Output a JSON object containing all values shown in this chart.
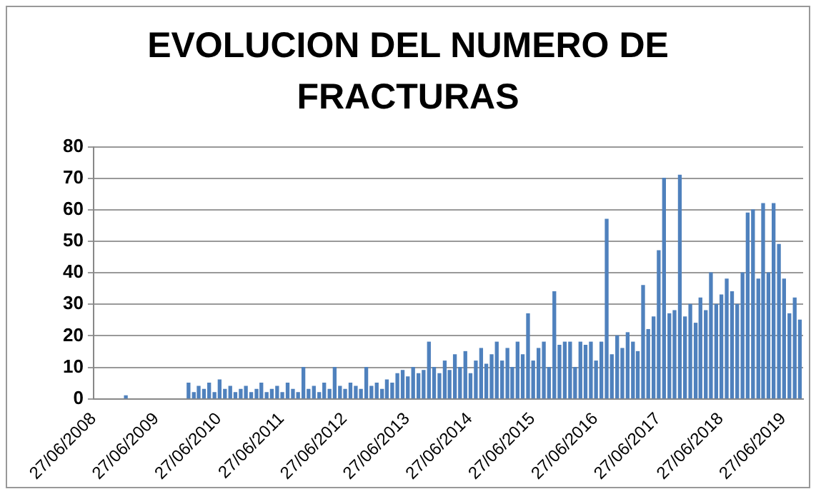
{
  "chart_data": {
    "type": "bar",
    "title": "EVOLUCION DEL NUMERO DE FRACTURAS",
    "x": [
      "2009-01",
      "2010-01",
      "2010-02",
      "2010-03",
      "2010-04",
      "2010-05",
      "2010-06",
      "2010-07",
      "2010-08",
      "2010-09",
      "2010-10",
      "2010-11",
      "2010-12",
      "2011-01",
      "2011-02",
      "2011-03",
      "2011-04",
      "2011-05",
      "2011-06",
      "2011-07",
      "2011-08",
      "2011-09",
      "2011-10",
      "2011-11",
      "2011-12",
      "2012-01",
      "2012-02",
      "2012-03",
      "2012-04",
      "2012-05",
      "2012-06",
      "2012-07",
      "2012-08",
      "2012-09",
      "2012-10",
      "2012-11",
      "2012-12",
      "2013-01",
      "2013-02",
      "2013-03",
      "2013-04",
      "2013-05",
      "2013-06",
      "2013-07",
      "2013-08",
      "2013-09",
      "2013-10",
      "2013-11",
      "2013-12",
      "2014-01",
      "2014-02",
      "2014-03",
      "2014-04",
      "2014-05",
      "2014-06",
      "2014-07",
      "2014-08",
      "2014-09",
      "2014-10",
      "2014-11",
      "2014-12",
      "2015-01",
      "2015-02",
      "2015-03",
      "2015-04",
      "2015-05",
      "2015-06",
      "2015-07",
      "2015-08",
      "2015-09",
      "2015-10",
      "2015-11",
      "2015-12",
      "2016-01",
      "2016-02",
      "2016-03",
      "2016-04",
      "2016-05",
      "2016-06",
      "2016-07",
      "2016-08",
      "2016-09",
      "2016-10",
      "2016-11",
      "2016-12",
      "2017-01",
      "2017-02",
      "2017-03",
      "2017-04",
      "2017-05",
      "2017-06",
      "2017-07",
      "2017-08",
      "2017-09",
      "2017-10",
      "2017-11",
      "2017-12",
      "2018-01",
      "2018-02",
      "2018-03",
      "2018-04",
      "2018-05",
      "2018-06",
      "2018-07",
      "2018-08",
      "2018-09",
      "2018-10",
      "2018-11",
      "2018-12",
      "2019-01",
      "2019-02",
      "2019-03",
      "2019-04",
      "2019-05",
      "2019-06",
      "2019-07",
      "2019-08",
      "2019-09",
      "2019-10"
    ],
    "series": [
      {
        "color": "#4f81bd",
        "values": [
          1,
          5,
          2,
          4,
          3,
          5,
          2,
          6,
          3,
          4,
          2,
          3,
          4,
          2,
          3,
          5,
          2,
          3,
          4,
          2,
          5,
          3,
          2,
          10,
          3,
          4,
          2,
          5,
          3,
          10,
          4,
          3,
          5,
          4,
          3,
          10,
          4,
          5,
          3,
          6,
          5,
          8,
          9,
          7,
          10,
          8,
          9,
          18,
          10,
          8,
          12,
          9,
          14,
          10,
          15,
          8,
          12,
          16,
          11,
          14,
          18,
          12,
          16,
          10,
          18,
          14,
          27,
          12,
          16,
          18,
          10,
          34,
          17,
          18,
          18,
          10,
          18,
          17,
          18,
          12,
          18,
          57,
          14,
          20,
          16,
          21,
          18,
          15,
          36,
          22,
          26,
          47,
          70,
          27,
          28,
          71,
          26,
          30,
          24,
          32,
          28,
          40,
          30,
          33,
          38,
          34,
          30,
          40,
          59,
          60,
          38,
          62,
          40,
          62,
          49,
          38,
          27,
          32,
          25
        ]
      }
    ],
    "xlim": [
      "2008-06-27",
      "2019-10-20"
    ],
    "xticks": [
      {
        "value": "2008-06-27",
        "label": "27/06/2008"
      },
      {
        "value": "2009-06-27",
        "label": "27/06/2009"
      },
      {
        "value": "2010-06-27",
        "label": "27/06/2010"
      },
      {
        "value": "2011-06-27",
        "label": "27/06/2011"
      },
      {
        "value": "2012-06-27",
        "label": "27/06/2012"
      },
      {
        "value": "2013-06-27",
        "label": "27/06/2013"
      },
      {
        "value": "2014-06-27",
        "label": "27/06/2014"
      },
      {
        "value": "2015-06-27",
        "label": "27/06/2015"
      },
      {
        "value": "2016-06-27",
        "label": "27/06/2016"
      },
      {
        "value": "2017-06-27",
        "label": "27/06/2017"
      },
      {
        "value": "2018-06-27",
        "label": "27/06/2018"
      },
      {
        "value": "2019-06-27",
        "label": "27/06/2019"
      }
    ],
    "ylim": [
      0,
      80
    ],
    "yticks": [
      0,
      10,
      20,
      30,
      40,
      50,
      60,
      70,
      80
    ],
    "grid": "y"
  }
}
